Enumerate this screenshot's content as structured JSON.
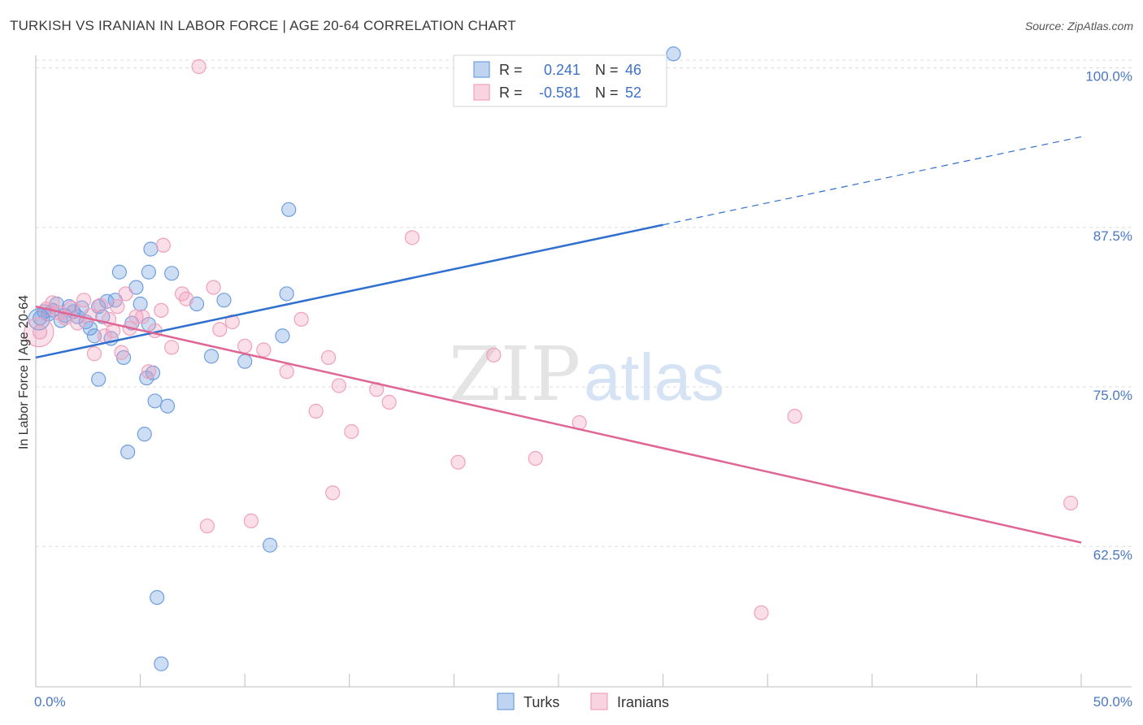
{
  "title": "TURKISH VS IRANIAN IN LABOR FORCE | AGE 20-64 CORRELATION CHART",
  "source": "Source: ZipAtlas.com",
  "watermark": {
    "zip": "ZIP",
    "atlas": "atlas"
  },
  "chart_data": {
    "type": "scatter",
    "ylabel": "In Labor Force | Age 20-64",
    "xlim": [
      0,
      50
    ],
    "ylim": [
      51.5,
      101.5
    ],
    "x_tick_labels": [
      "0.0%",
      "50.0%"
    ],
    "y_ticks": [
      62.5,
      75.0,
      87.5,
      100.0
    ],
    "y_tick_labels": [
      "62.5%",
      "75.0%",
      "87.5%",
      "100.0%"
    ],
    "grid": true,
    "legend": {
      "position": "top-center",
      "rows": [
        {
          "r_label": "R = ",
          "r_value": "0.241",
          "n_label": "N = ",
          "n_value": "46"
        },
        {
          "r_label": "R = ",
          "r_value": "-0.581",
          "n_label": "N = ",
          "n_value": "52"
        }
      ]
    },
    "series": [
      {
        "name": "Turks",
        "color": "#6f9fe0",
        "line_color": "#2f6fcf",
        "fit": {
          "x0": 0,
          "y0": 77.3,
          "x1": 30,
          "y1": 87.7,
          "x_dash_end": 50,
          "y_dash_end": 94.6
        },
        "points": [
          [
            0.2,
            80.4
          ],
          [
            0.4,
            80.9
          ],
          [
            0.6,
            80.7
          ],
          [
            0.8,
            81.0
          ],
          [
            1.0,
            81.5
          ],
          [
            1.2,
            80.2
          ],
          [
            1.4,
            80.6
          ],
          [
            1.6,
            81.3
          ],
          [
            1.8,
            80.9
          ],
          [
            2.0,
            80.5
          ],
          [
            2.2,
            81.2
          ],
          [
            2.4,
            80.1
          ],
          [
            2.6,
            79.6
          ],
          [
            2.8,
            79.0
          ],
          [
            3.0,
            81.3
          ],
          [
            3.2,
            80.5
          ],
          [
            3.4,
            81.7
          ],
          [
            3.6,
            78.8
          ],
          [
            3.8,
            81.8
          ],
          [
            4.0,
            84.0
          ],
          [
            4.2,
            77.3
          ],
          [
            4.4,
            69.9
          ],
          [
            4.6,
            80.0
          ],
          [
            4.8,
            82.8
          ],
          [
            5.0,
            81.5
          ],
          [
            5.2,
            71.3
          ],
          [
            5.4,
            84.0
          ],
          [
            5.5,
            85.8
          ],
          [
            5.6,
            76.1
          ],
          [
            5.8,
            58.5
          ],
          [
            6.0,
            53.3
          ],
          [
            5.3,
            75.7
          ],
          [
            5.4,
            79.9
          ],
          [
            5.7,
            73.9
          ],
          [
            6.3,
            73.5
          ],
          [
            6.5,
            83.9
          ],
          [
            7.7,
            81.5
          ],
          [
            8.4,
            77.4
          ],
          [
            9.0,
            81.8
          ],
          [
            10.0,
            77.0
          ],
          [
            11.2,
            62.6
          ],
          [
            11.8,
            79.0
          ],
          [
            12.0,
            82.3
          ],
          [
            12.1,
            88.9
          ],
          [
            30.5,
            101.1
          ],
          [
            3.0,
            75.6
          ]
        ]
      },
      {
        "name": "Iranians",
        "color": "#f0a0bd",
        "line_color": "#e06595",
        "fit": {
          "x0": 0,
          "y0": 81.3,
          "x1": 50,
          "y1": 62.8
        },
        "points": [
          [
            0.2,
            79.3
          ],
          [
            0.5,
            81.1
          ],
          [
            0.8,
            81.6
          ],
          [
            1.1,
            80.8
          ],
          [
            1.4,
            80.4
          ],
          [
            1.7,
            81.2
          ],
          [
            2.0,
            80.0
          ],
          [
            2.3,
            81.8
          ],
          [
            2.6,
            80.6
          ],
          [
            2.8,
            77.6
          ],
          [
            3.1,
            81.4
          ],
          [
            3.3,
            79.0
          ],
          [
            3.5,
            80.3
          ],
          [
            3.7,
            79.4
          ],
          [
            3.9,
            81.3
          ],
          [
            4.1,
            77.7
          ],
          [
            4.3,
            82.3
          ],
          [
            4.5,
            79.6
          ],
          [
            4.8,
            80.5
          ],
          [
            5.1,
            80.5
          ],
          [
            5.4,
            76.2
          ],
          [
            5.7,
            79.4
          ],
          [
            6.0,
            81.0
          ],
          [
            6.1,
            86.1
          ],
          [
            6.5,
            78.1
          ],
          [
            7.0,
            82.3
          ],
          [
            7.2,
            81.9
          ],
          [
            7.8,
            100.1
          ],
          [
            8.2,
            64.1
          ],
          [
            8.5,
            82.8
          ],
          [
            8.8,
            79.5
          ],
          [
            9.4,
            80.1
          ],
          [
            10.0,
            78.2
          ],
          [
            10.3,
            64.5
          ],
          [
            10.9,
            77.9
          ],
          [
            12.0,
            76.2
          ],
          [
            12.7,
            80.3
          ],
          [
            13.4,
            73.1
          ],
          [
            14.0,
            77.3
          ],
          [
            14.2,
            66.7
          ],
          [
            14.5,
            75.1
          ],
          [
            15.1,
            71.5
          ],
          [
            16.3,
            74.8
          ],
          [
            16.9,
            73.8
          ],
          [
            18.0,
            86.7
          ],
          [
            20.2,
            69.1
          ],
          [
            21.9,
            77.5
          ],
          [
            23.9,
            69.4
          ],
          [
            26.0,
            72.2
          ],
          [
            34.7,
            57.3
          ],
          [
            36.3,
            72.7
          ],
          [
            49.5,
            65.9
          ]
        ]
      }
    ]
  },
  "bottom_legend": [
    "Turks",
    "Iranians"
  ]
}
